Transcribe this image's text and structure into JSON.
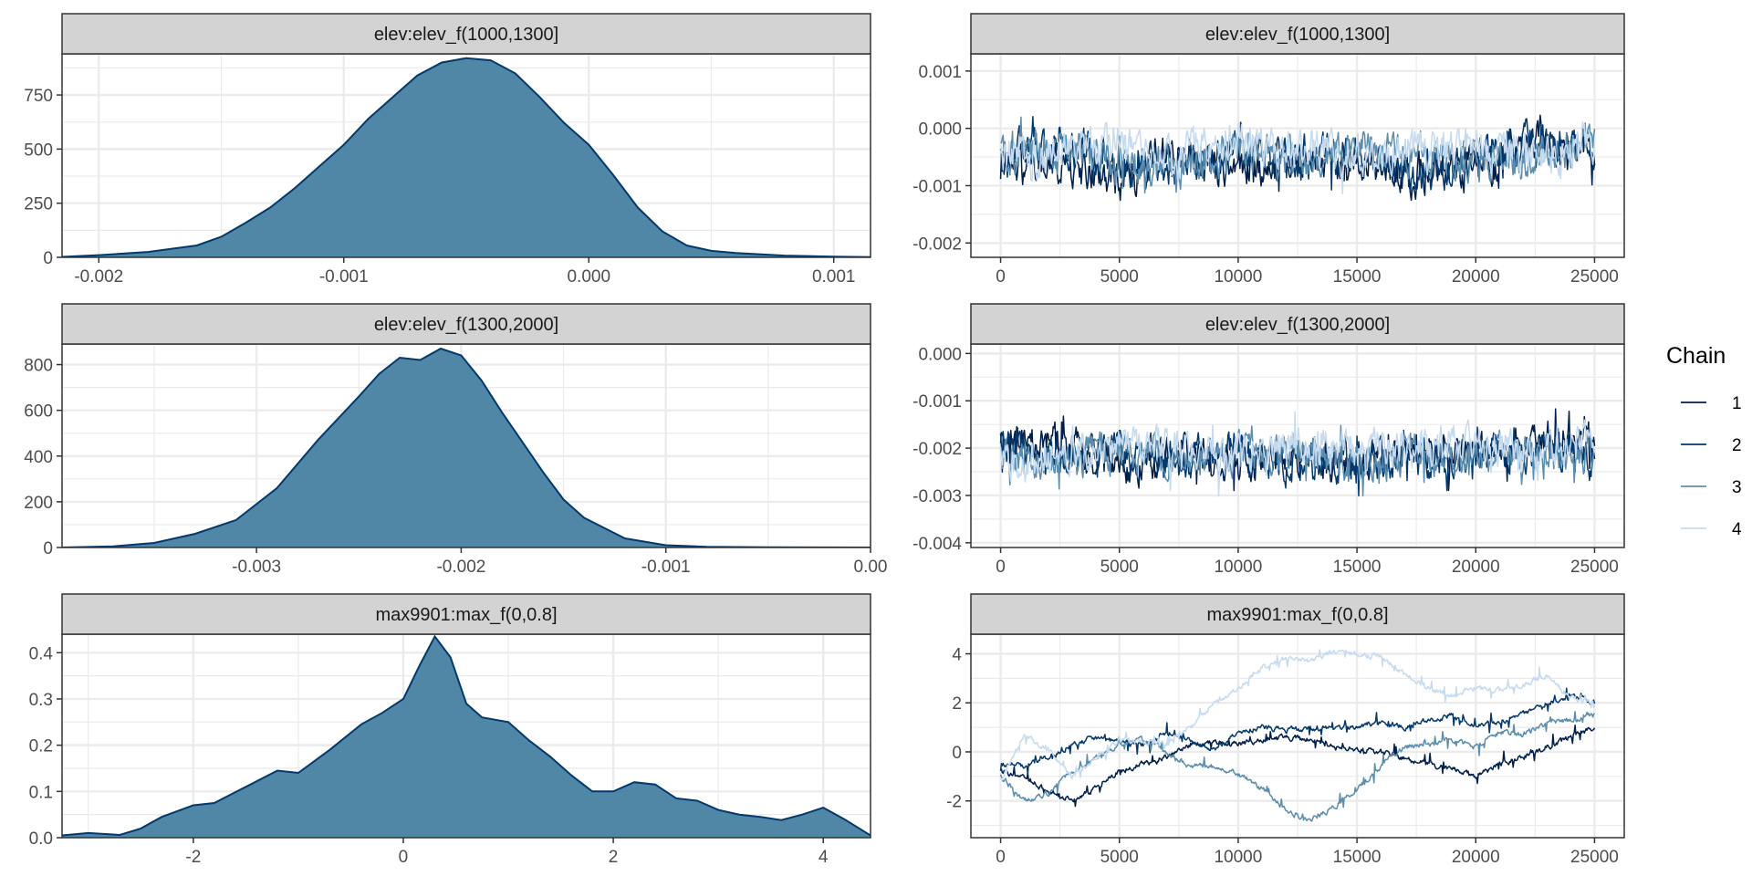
{
  "legend": {
    "title": "Chain",
    "items": [
      {
        "label": "1",
        "color": "#011f4b"
      },
      {
        "label": "2",
        "color": "#03396c"
      },
      {
        "label": "3",
        "color": "#5b8eae"
      },
      {
        "label": "4",
        "color": "#c6dbef"
      }
    ]
  },
  "colors": {
    "density_fill": "#5086a6",
    "density_line": "#03396c",
    "strip_bg": "#d3d3d3",
    "grid": "#ebebeb",
    "panel_border": "#333333"
  },
  "chart_data": [
    {
      "type": "area",
      "panel": "density",
      "title": "elev:elev_f(1000,1300]",
      "xlim": [
        -0.00215,
        0.00115
      ],
      "ylim": [
        0,
        940
      ],
      "x_ticks": [
        -0.002,
        -0.001,
        0.0,
        0.001
      ],
      "x_tick_labels": [
        "-0.002",
        "-0.001",
        "0.000",
        "0.001"
      ],
      "y_ticks": [
        0,
        250,
        500,
        750
      ],
      "y_tick_labels": [
        "0",
        "250",
        "500",
        "750"
      ],
      "x": [
        -0.00215,
        -0.002,
        -0.0018,
        -0.0016,
        -0.0015,
        -0.0014,
        -0.0013,
        -0.0012,
        -0.0011,
        -0.001,
        -0.0009,
        -0.0008,
        -0.0007,
        -0.0006,
        -0.0005,
        -0.0004,
        -0.0003,
        -0.0002,
        -0.0001,
        0.0,
        0.0001,
        0.0002,
        0.0003,
        0.0004,
        0.0005,
        0.0006,
        0.0008,
        0.001,
        0.00115
      ],
      "y": [
        2,
        10,
        25,
        55,
        95,
        160,
        230,
        320,
        420,
        520,
        640,
        740,
        840,
        900,
        920,
        910,
        850,
        740,
        620,
        520,
        380,
        230,
        120,
        55,
        30,
        20,
        8,
        3,
        1
      ]
    },
    {
      "type": "line",
      "panel": "trace",
      "title": "elev:elev_f(1000,1300]",
      "xlim": [
        -1250,
        26250
      ],
      "ylim": [
        -0.00225,
        0.0013
      ],
      "x_ticks": [
        0,
        5000,
        10000,
        15000,
        20000,
        25000
      ],
      "x_tick_labels": [
        "0",
        "5000",
        "10000",
        "15000",
        "20000",
        "25000"
      ],
      "y_ticks": [
        -0.002,
        -0.001,
        0.0,
        0.001
      ],
      "y_tick_labels": [
        "-0.002",
        "-0.001",
        "0.000",
        "0.001"
      ],
      "series": [
        {
          "name": "1",
          "x": [
            0,
            2500,
            5000,
            7500,
            10000,
            12500,
            15000,
            17500,
            20000,
            22500,
            25000
          ],
          "y": [
            -0.0008,
            -0.0006,
            -0.0009,
            -0.0004,
            -0.0007,
            -0.0005,
            -0.0006,
            -0.0008,
            -0.0007,
            -0.0003,
            -0.0004
          ]
        },
        {
          "name": "2",
          "x": [
            0,
            2500,
            5000,
            7500,
            10000,
            12500,
            15000,
            17500,
            20000,
            22500,
            25000
          ],
          "y": [
            -0.0005,
            -0.0002,
            -0.0007,
            -0.0006,
            -0.0003,
            -0.0006,
            -0.0004,
            -0.0009,
            -0.0005,
            -0.0002,
            -0.0003
          ]
        },
        {
          "name": "3",
          "x": [
            0,
            2500,
            5000,
            7500,
            10000,
            12500,
            15000,
            17500,
            20000,
            22500,
            25000
          ],
          "y": [
            -0.0004,
            -0.0003,
            -0.0005,
            -0.0007,
            -0.0004,
            -0.0006,
            -0.0003,
            -0.0005,
            -0.0006,
            -0.0004,
            -0.0003
          ]
        },
        {
          "name": "4",
          "x": [
            0,
            2500,
            5000,
            7500,
            10000,
            12500,
            15000,
            17500,
            20000,
            22500,
            25000
          ],
          "y": [
            -0.0006,
            -0.0004,
            -0.0003,
            -0.0005,
            -0.0002,
            -0.0004,
            -0.0005,
            -0.0004,
            -0.0003,
            -0.0005,
            -0.0002
          ]
        }
      ],
      "base_amplitude": 0.0003,
      "spike_amplitude": 0.00015
    },
    {
      "type": "area",
      "panel": "density",
      "title": "elev:elev_f(1300,2000]",
      "xlim": [
        -0.00395,
        0.0
      ],
      "ylim": [
        0,
        890
      ],
      "x_ticks": [
        -0.003,
        -0.002,
        -0.001,
        0.0
      ],
      "x_tick_labels": [
        "-0.003",
        "-0.002",
        "-0.001",
        "0.00"
      ],
      "y_ticks": [
        0,
        200,
        400,
        600,
        800
      ],
      "y_tick_labels": [
        "0",
        "200",
        "400",
        "600",
        "800"
      ],
      "x": [
        -0.00395,
        -0.0037,
        -0.0035,
        -0.0033,
        -0.0031,
        -0.0029,
        -0.0027,
        -0.0025,
        -0.0024,
        -0.0023,
        -0.0022,
        -0.0021,
        -0.002,
        -0.0019,
        -0.0018,
        -0.0017,
        -0.0016,
        -0.0015,
        -0.0014,
        -0.0012,
        -0.001,
        -0.0008,
        -0.0005,
        0.0
      ],
      "y": [
        0,
        5,
        20,
        60,
        120,
        260,
        470,
        660,
        760,
        830,
        820,
        870,
        840,
        730,
        590,
        460,
        330,
        210,
        130,
        40,
        10,
        3,
        1,
        0
      ]
    },
    {
      "type": "line",
      "panel": "trace",
      "title": "elev:elev_f(1300,2000]",
      "xlim": [
        -1250,
        26250
      ],
      "ylim": [
        -0.0041,
        0.0002
      ],
      "x_ticks": [
        0,
        5000,
        10000,
        15000,
        20000,
        25000
      ],
      "x_tick_labels": [
        "0",
        "5000",
        "10000",
        "15000",
        "20000",
        "25000"
      ],
      "y_ticks": [
        -0.004,
        -0.003,
        -0.002,
        -0.001,
        0.0
      ],
      "y_tick_labels": [
        "-0.004",
        "-0.003",
        "-0.002",
        "-0.001",
        "0.000"
      ],
      "series": [
        {
          "name": "1",
          "x": [
            0,
            2500,
            5000,
            7500,
            10000,
            12500,
            15000,
            17500,
            20000,
            22500,
            25000
          ],
          "y": [
            -0.0021,
            -0.0019,
            -0.0024,
            -0.0021,
            -0.0023,
            -0.0022,
            -0.0024,
            -0.0021,
            -0.0022,
            -0.0018,
            -0.0019
          ]
        },
        {
          "name": "2",
          "x": [
            0,
            2500,
            5000,
            7500,
            10000,
            12500,
            15000,
            17500,
            20000,
            22500,
            25000
          ],
          "y": [
            -0.0019,
            -0.0022,
            -0.0021,
            -0.0023,
            -0.0019,
            -0.0024,
            -0.0022,
            -0.0023,
            -0.0021,
            -0.002,
            -0.0021
          ]
        },
        {
          "name": "3",
          "x": [
            0,
            2500,
            5000,
            7500,
            10000,
            12500,
            15000,
            17500,
            20000,
            22500,
            25000
          ],
          "y": [
            -0.0022,
            -0.0023,
            -0.002,
            -0.0022,
            -0.0021,
            -0.002,
            -0.0023,
            -0.0021,
            -0.0023,
            -0.0021,
            -0.0022
          ]
        },
        {
          "name": "4",
          "x": [
            0,
            2500,
            5000,
            7500,
            10000,
            12500,
            15000,
            17500,
            20000,
            22500,
            25000
          ],
          "y": [
            -0.0024,
            -0.0021,
            -0.0019,
            -0.002,
            -0.0021,
            -0.0019,
            -0.002,
            -0.002,
            -0.0019,
            -0.002,
            -0.0019
          ]
        }
      ],
      "base_amplitude": 0.00035,
      "spike_amplitude": 0.00025
    },
    {
      "type": "area",
      "panel": "density",
      "title": "max9901:max_f(0,0.8]",
      "xlim": [
        -3.25,
        4.45
      ],
      "ylim": [
        0,
        0.44
      ],
      "x_ticks": [
        -2,
        0,
        2,
        4
      ],
      "x_tick_labels": [
        "-2",
        "0",
        "2",
        "4"
      ],
      "y_ticks": [
        0.0,
        0.1,
        0.2,
        0.3,
        0.4
      ],
      "y_tick_labels": [
        "0.0",
        "0.1",
        "0.2",
        "0.3",
        "0.4"
      ],
      "x": [
        -3.25,
        -3.0,
        -2.7,
        -2.5,
        -2.3,
        -2.0,
        -1.8,
        -1.5,
        -1.2,
        -1.0,
        -0.7,
        -0.4,
        -0.2,
        0.0,
        0.15,
        0.3,
        0.45,
        0.6,
        0.75,
        1.0,
        1.2,
        1.4,
        1.6,
        1.8,
        2.0,
        2.2,
        2.4,
        2.6,
        2.8,
        3.0,
        3.2,
        3.4,
        3.6,
        3.8,
        4.0,
        4.2,
        4.45
      ],
      "y": [
        0.005,
        0.01,
        0.006,
        0.02,
        0.045,
        0.07,
        0.075,
        0.11,
        0.145,
        0.14,
        0.19,
        0.245,
        0.27,
        0.3,
        0.37,
        0.435,
        0.39,
        0.29,
        0.26,
        0.25,
        0.21,
        0.175,
        0.135,
        0.1,
        0.1,
        0.12,
        0.115,
        0.085,
        0.08,
        0.06,
        0.05,
        0.045,
        0.038,
        0.05,
        0.065,
        0.04,
        0.005
      ]
    },
    {
      "type": "line",
      "panel": "trace",
      "title": "max9901:max_f(0,0.8]",
      "xlim": [
        -1250,
        26250
      ],
      "ylim": [
        -3.5,
        4.8
      ],
      "x_ticks": [
        0,
        5000,
        10000,
        15000,
        20000,
        25000
      ],
      "x_tick_labels": [
        "0",
        "5000",
        "10000",
        "15000",
        "20000",
        "25000"
      ],
      "y_ticks": [
        -2,
        0,
        2,
        4
      ],
      "y_tick_labels": [
        "-2",
        "0",
        "2",
        "4"
      ],
      "series": [
        {
          "name": "1",
          "x": [
            0,
            1000,
            2000,
            3000,
            4000,
            5000,
            6000,
            7000,
            8000,
            9000,
            10000,
            11000,
            12000,
            13000,
            14000,
            15000,
            16000,
            17000,
            18000,
            19000,
            20000,
            21000,
            22000,
            23000,
            24000,
            25000
          ],
          "y": [
            -0.8,
            -1.0,
            -1.6,
            -2.0,
            -1.5,
            -0.8,
            -0.5,
            -0.2,
            0.3,
            0.4,
            0.3,
            0.5,
            0.6,
            0.5,
            0.2,
            0.1,
            0.0,
            -0.3,
            -0.5,
            -0.7,
            -1.0,
            -0.5,
            -0.2,
            0.2,
            0.6,
            1.0
          ]
        },
        {
          "name": "2",
          "x": [
            0,
            1000,
            2000,
            3000,
            4000,
            5000,
            6000,
            7000,
            8000,
            9000,
            10000,
            11000,
            12000,
            13000,
            14000,
            15000,
            16000,
            17000,
            18000,
            19000,
            20000,
            21000,
            22000,
            23000,
            24000,
            25000
          ],
          "y": [
            -0.5,
            -0.6,
            -0.2,
            0.3,
            0.6,
            0.4,
            0.3,
            0.8,
            0.5,
            0.1,
            0.8,
            1.0,
            0.9,
            0.9,
            1.0,
            1.0,
            1.2,
            1.0,
            1.3,
            1.5,
            1.1,
            1.2,
            1.6,
            2.0,
            2.3,
            2.0
          ]
        },
        {
          "name": "3",
          "x": [
            0,
            1000,
            2000,
            3000,
            4000,
            5000,
            6000,
            7000,
            8000,
            9000,
            10000,
            11000,
            12000,
            13000,
            14000,
            15000,
            16000,
            17000,
            18000,
            19000,
            20000,
            21000,
            22000,
            23000,
            24000,
            25000
          ],
          "y": [
            -1.0,
            -2.0,
            -1.7,
            -0.8,
            -0.3,
            0.3,
            0.5,
            0.0,
            -0.6,
            -0.6,
            -0.9,
            -1.5,
            -2.4,
            -2.8,
            -2.3,
            -1.5,
            -0.6,
            0.2,
            0.3,
            0.5,
            0.2,
            0.8,
            0.7,
            1.2,
            1.3,
            1.5
          ]
        },
        {
          "name": "4",
          "x": [
            0,
            1000,
            2000,
            3000,
            4000,
            5000,
            6000,
            7000,
            8000,
            9000,
            10000,
            11000,
            12000,
            13000,
            14000,
            15000,
            16000,
            17000,
            18000,
            19000,
            20000,
            21000,
            22000,
            23000,
            24000,
            25000
          ],
          "y": [
            -1.2,
            0.7,
            0.1,
            -1.0,
            -0.3,
            0.5,
            0.4,
            0.3,
            1.0,
            2.0,
            2.6,
            3.4,
            3.8,
            3.7,
            4.1,
            4.0,
            3.9,
            3.2,
            2.6,
            2.3,
            2.6,
            2.5,
            2.7,
            3.1,
            2.2,
            2.0
          ]
        }
      ],
      "base_amplitude": 0.1,
      "spike_amplitude": 0.18
    }
  ]
}
